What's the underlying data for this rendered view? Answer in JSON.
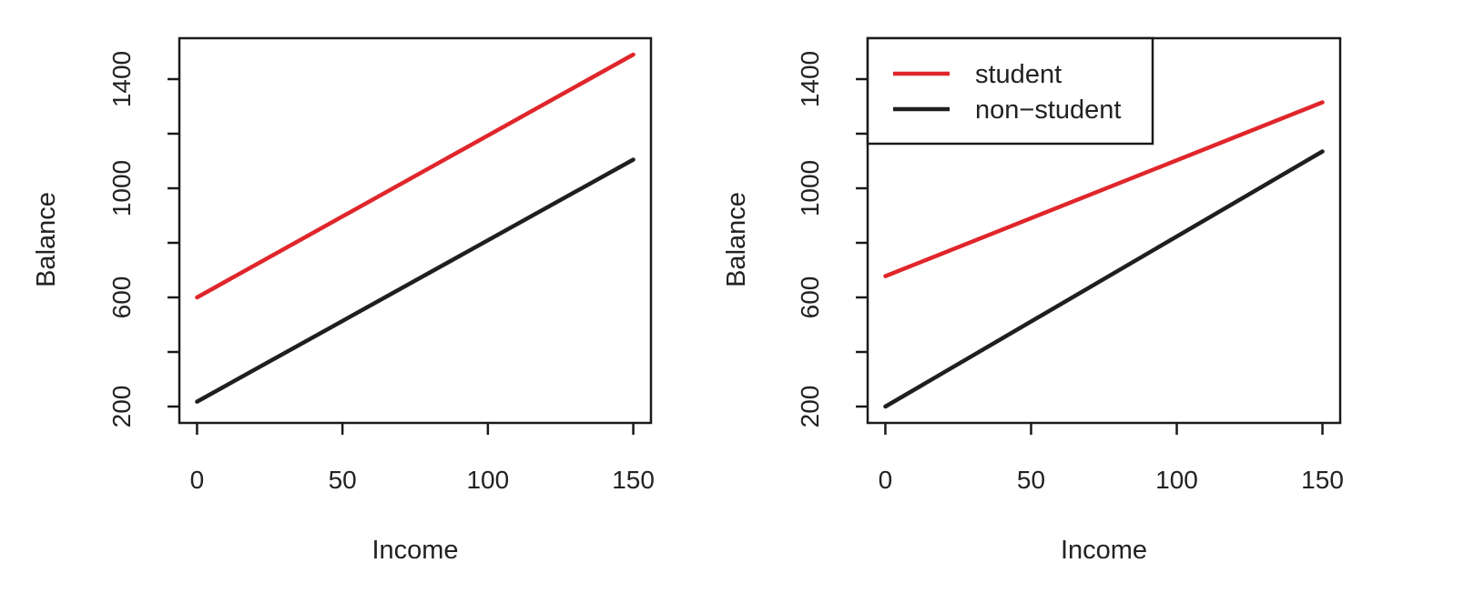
{
  "chart_data": [
    {
      "type": "line",
      "xlabel": "Income",
      "ylabel": "Balance",
      "xlim": [
        0,
        150
      ],
      "ylim": [
        140,
        1550
      ],
      "x_ticks": [
        "0",
        "50",
        "100",
        "150"
      ],
      "y_ticks": [
        "200",
        "600",
        "1000",
        "1400"
      ],
      "y_minor_ticks": [
        400,
        800,
        1200
      ],
      "legend": null,
      "grid": false,
      "series": [
        {
          "key": "student",
          "color": "#e0262b",
          "x": [
            0,
            150
          ],
          "y": [
            600,
            1490
          ]
        },
        {
          "key": "non-student",
          "color": "#1f1f1f",
          "x": [
            0,
            150
          ],
          "y": [
            218,
            1105
          ]
        }
      ]
    },
    {
      "type": "line",
      "xlabel": "Income",
      "ylabel": "Balance",
      "xlim": [
        0,
        150
      ],
      "ylim": [
        140,
        1550
      ],
      "x_ticks": [
        "0",
        "50",
        "100",
        "150"
      ],
      "y_ticks": [
        "200",
        "600",
        "1000",
        "1400"
      ],
      "y_minor_ticks": [
        400,
        800,
        1200
      ],
      "legend": {
        "position": "top-left",
        "entries": [
          {
            "label": "student",
            "color": "#e0262b"
          },
          {
            "label": "non−student",
            "color": "#1f1f1f"
          }
        ]
      },
      "grid": false,
      "series": [
        {
          "key": "student",
          "color": "#e0262b",
          "x": [
            0,
            150
          ],
          "y": [
            678,
            1315
          ]
        },
        {
          "key": "non-student",
          "color": "#1f1f1f",
          "x": [
            0,
            150
          ],
          "y": [
            200,
            1135
          ]
        }
      ]
    }
  ]
}
